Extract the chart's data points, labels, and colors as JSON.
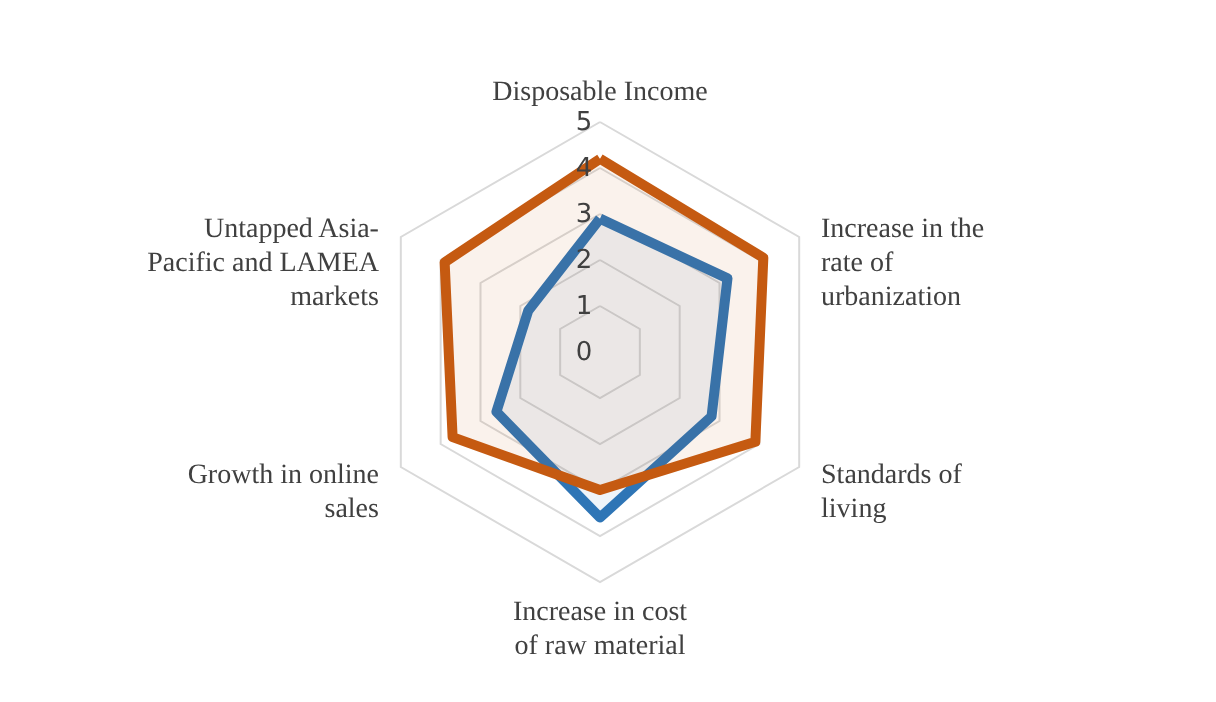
{
  "chart_data": {
    "type": "radar",
    "categories": [
      "Disposable Income",
      "Increase in the rate of urbanization",
      "Standards of living",
      "Increase in cost of raw material",
      "Growth in online sales",
      "Untapped Asia-Pacific and LAMEA markets"
    ],
    "series": [
      {
        "color": "#2e75b6",
        "values": [
          2.9,
          3.2,
          2.8,
          3.6,
          2.6,
          1.8
        ]
      },
      {
        "color": "#c55a11",
        "values": [
          4.2,
          4.1,
          3.9,
          3.0,
          3.7,
          3.9
        ]
      }
    ],
    "ylim": [
      0,
      5
    ],
    "yticks": [
      0,
      1,
      2,
      3,
      4,
      5
    ],
    "grid": true
  }
}
